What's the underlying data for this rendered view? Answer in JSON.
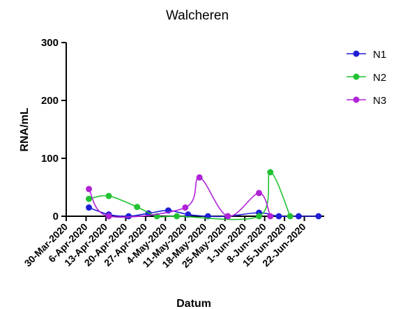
{
  "chart_data": {
    "type": "line",
    "title": "Walcheren",
    "xlabel": "Datum",
    "ylabel": "RNA/mL",
    "ylim": [
      0,
      300
    ],
    "yticks": [
      "0",
      "100",
      "200",
      "300"
    ],
    "categories": [
      "30-Mar-2020",
      "6-Apr-2020",
      "13-Apr-2020",
      "20-Apr-2020",
      "27-Apr-2020",
      "4-May-2020",
      "11-May-2020",
      "18-May-2020",
      "25-May-2020",
      "1-Jun-2020",
      "8-Jun-2020",
      "15-Jun-2020",
      "22-Jun-2020"
    ],
    "x_start": "30-Mar-2020",
    "x_end": "29-Jun-2020",
    "legend_position": "right",
    "series": [
      {
        "name": "N1",
        "color": "#1f1fd6",
        "points": [
          {
            "x": "7-Apr-2020",
            "y": 15
          },
          {
            "x": "14-Apr-2020",
            "y": 3
          },
          {
            "x": "21-Apr-2020",
            "y": 0
          },
          {
            "x": "28-Apr-2020",
            "y": 5
          },
          {
            "x": "5-May-2020",
            "y": 10
          },
          {
            "x": "12-May-2020",
            "y": 3
          },
          {
            "x": "19-May-2020",
            "y": 0
          },
          {
            "x": "26-May-2020",
            "y": 0
          },
          {
            "x": "6-Jun-2020",
            "y": 6
          },
          {
            "x": "13-Jun-2020",
            "y": 0
          },
          {
            "x": "20-Jun-2020",
            "y": 0
          },
          {
            "x": "27-Jun-2020",
            "y": 0
          }
        ]
      },
      {
        "name": "N2",
        "color": "#22c232",
        "points": [
          {
            "x": "7-Apr-2020",
            "y": 30
          },
          {
            "x": "14-Apr-2020",
            "y": 35
          },
          {
            "x": "24-Apr-2020",
            "y": 16
          },
          {
            "x": "1-May-2020",
            "y": 0
          },
          {
            "x": "8-May-2020",
            "y": 0
          },
          {
            "x": "6-Jun-2020",
            "y": 0
          },
          {
            "x": "10-Jun-2020",
            "y": 76
          },
          {
            "x": "17-Jun-2020",
            "y": 0
          }
        ]
      },
      {
        "name": "N3",
        "color": "#b023d6",
        "points": [
          {
            "x": "7-Apr-2020",
            "y": 47
          },
          {
            "x": "14-Apr-2020",
            "y": 0
          },
          {
            "x": "11-May-2020",
            "y": 15
          },
          {
            "x": "16-May-2020",
            "y": 67
          },
          {
            "x": "26-May-2020",
            "y": 0
          },
          {
            "x": "6-Jun-2020",
            "y": 40
          },
          {
            "x": "10-Jun-2020",
            "y": 0
          }
        ]
      }
    ]
  }
}
